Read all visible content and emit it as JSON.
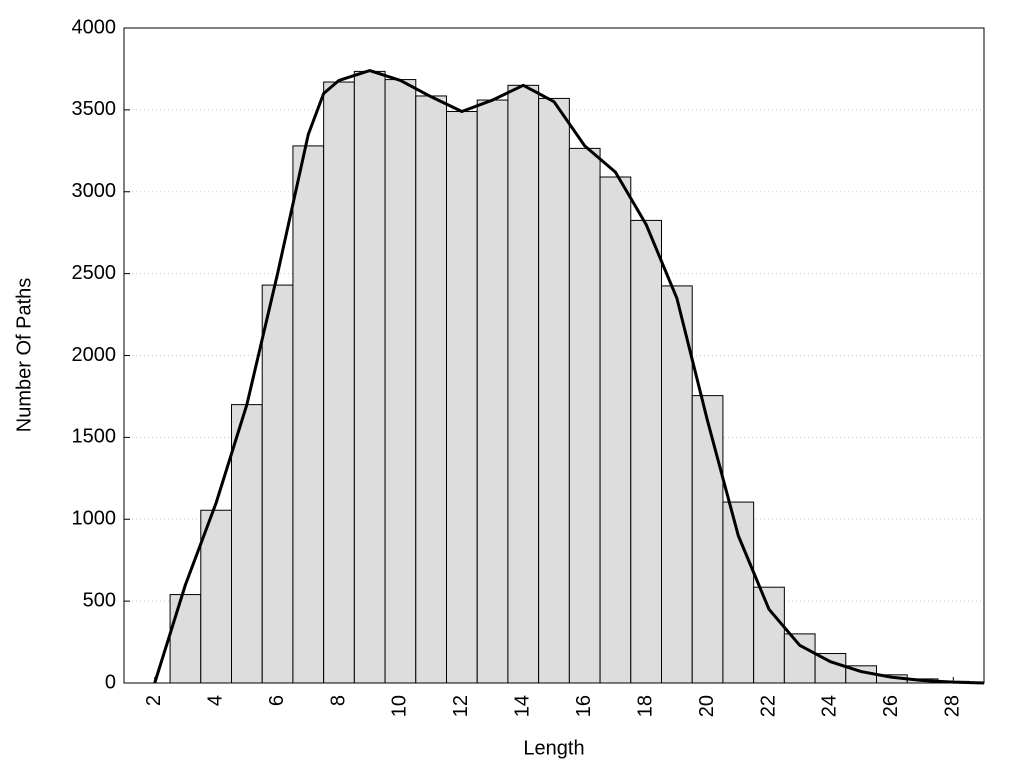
{
  "chart_data": {
    "type": "histogram",
    "xlabel": "Length",
    "ylabel": "Number Of Paths",
    "bins": [
      2.5,
      3.5,
      4.5,
      5.5,
      6.5,
      7.5,
      8.5,
      9.5,
      10.5,
      11.5,
      12.5,
      13.5,
      14.5,
      15.5,
      16.5,
      17.5,
      18.5,
      19.5,
      20.5,
      21.5,
      22.5,
      23.5,
      24.5,
      25.5,
      26.5,
      27.5,
      28.5
    ],
    "values": [
      540,
      1055,
      1700,
      2430,
      3280,
      3670,
      3735,
      3685,
      3585,
      3490,
      3560,
      3650,
      3570,
      3265,
      3090,
      2825,
      2425,
      1755,
      1105,
      585,
      300,
      180,
      105,
      50,
      25,
      10
    ],
    "color": "#dddddd",
    "curve": {
      "color": "#000000",
      "x": [
        2,
        2.5,
        3,
        3.5,
        4,
        5,
        6,
        7,
        7.5,
        8,
        9,
        10,
        11,
        12,
        13,
        14,
        15,
        16,
        17,
        18,
        19,
        20,
        21,
        22,
        23,
        24,
        25,
        26,
        27,
        28,
        29
      ],
      "values": [
        0,
        300,
        600,
        850,
        1100,
        1700,
        2500,
        3350,
        3600,
        3680,
        3740,
        3680,
        3580,
        3490,
        3560,
        3650,
        3550,
        3280,
        3120,
        2800,
        2350,
        1600,
        900,
        450,
        230,
        130,
        70,
        35,
        15,
        5,
        0
      ]
    },
    "xlim": [
      1,
      29
    ],
    "xticks": [
      2,
      4,
      6,
      8,
      10,
      12,
      14,
      16,
      18,
      20,
      22,
      24,
      26,
      28
    ],
    "ylim": [
      0,
      4000
    ],
    "yticks": [
      0,
      500,
      1000,
      1500,
      2000,
      2500,
      3000,
      3500,
      4000
    ],
    "grid": true
  }
}
